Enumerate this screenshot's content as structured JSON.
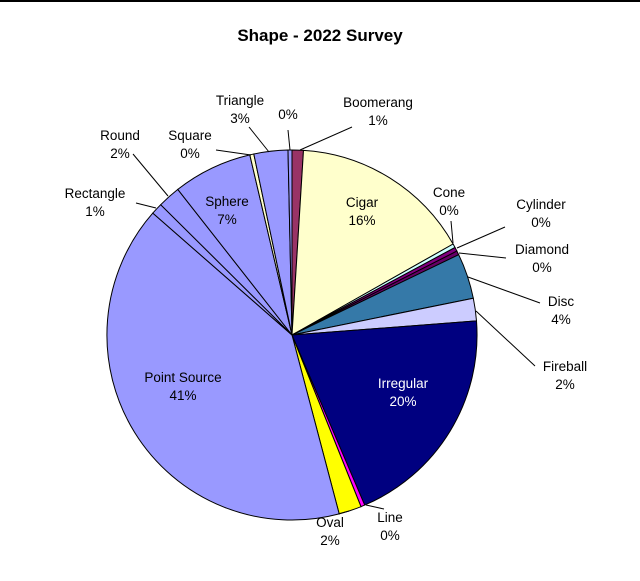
{
  "page": {
    "background_color": "#FFFFFF",
    "top_border_color": "#000000"
  },
  "chart_data": {
    "type": "pie",
    "title": "Shape - 2022 Survey",
    "legend": "none",
    "start_angle_deg": -90,
    "direction": "clockwise",
    "label_format": "name + percent",
    "slices": [
      {
        "name": "Boomerang",
        "pct": 1,
        "color": "#993366",
        "label_placement": "outside"
      },
      {
        "name": "Cigar",
        "pct": 16,
        "color": "#FFFFCC",
        "label_placement": "inside"
      },
      {
        "name": "Cone",
        "pct": 0,
        "color": "#CCFFFF",
        "label_placement": "outside"
      },
      {
        "name": "Cylinder",
        "pct": 0,
        "color": "#800080",
        "label_placement": "outside"
      },
      {
        "name": "Diamond",
        "pct": 0,
        "color": "#660066",
        "label_placement": "outside"
      },
      {
        "name": "Disc",
        "pct": 4,
        "color": "#3579A8",
        "label_placement": "outside"
      },
      {
        "name": "Fireball",
        "pct": 2,
        "color": "#CCCCFF",
        "label_placement": "outside"
      },
      {
        "name": "Irregular",
        "pct": 20,
        "color": "#000080",
        "label_placement": "inside",
        "label_color": "#FFFFFF"
      },
      {
        "name": "Line",
        "pct": 0,
        "color": "#FF00FF",
        "label_placement": "outside"
      },
      {
        "name": "Oval",
        "pct": 2,
        "color": "#FFFF00",
        "label_placement": "outside"
      },
      {
        "name": "Point Source",
        "pct": 41,
        "color": "#9999FF",
        "label_placement": "inside"
      },
      {
        "name": "Rectangle",
        "pct": 1,
        "color": "#9999FF",
        "label_placement": "outside"
      },
      {
        "name": "Round",
        "pct": 2,
        "color": "#9999FF",
        "label_placement": "outside"
      },
      {
        "name": "Sphere",
        "pct": 7,
        "color": "#9999FF",
        "label_placement": "inside"
      },
      {
        "name": "Square",
        "pct": 0,
        "color": "#FFFFCC",
        "label_placement": "outside"
      },
      {
        "name": "Triangle",
        "pct": 3,
        "color": "#9999FF",
        "label_placement": "outside"
      },
      {
        "name": "",
        "pct": 0,
        "color": "#9999FF",
        "label_placement": "outside"
      }
    ]
  }
}
